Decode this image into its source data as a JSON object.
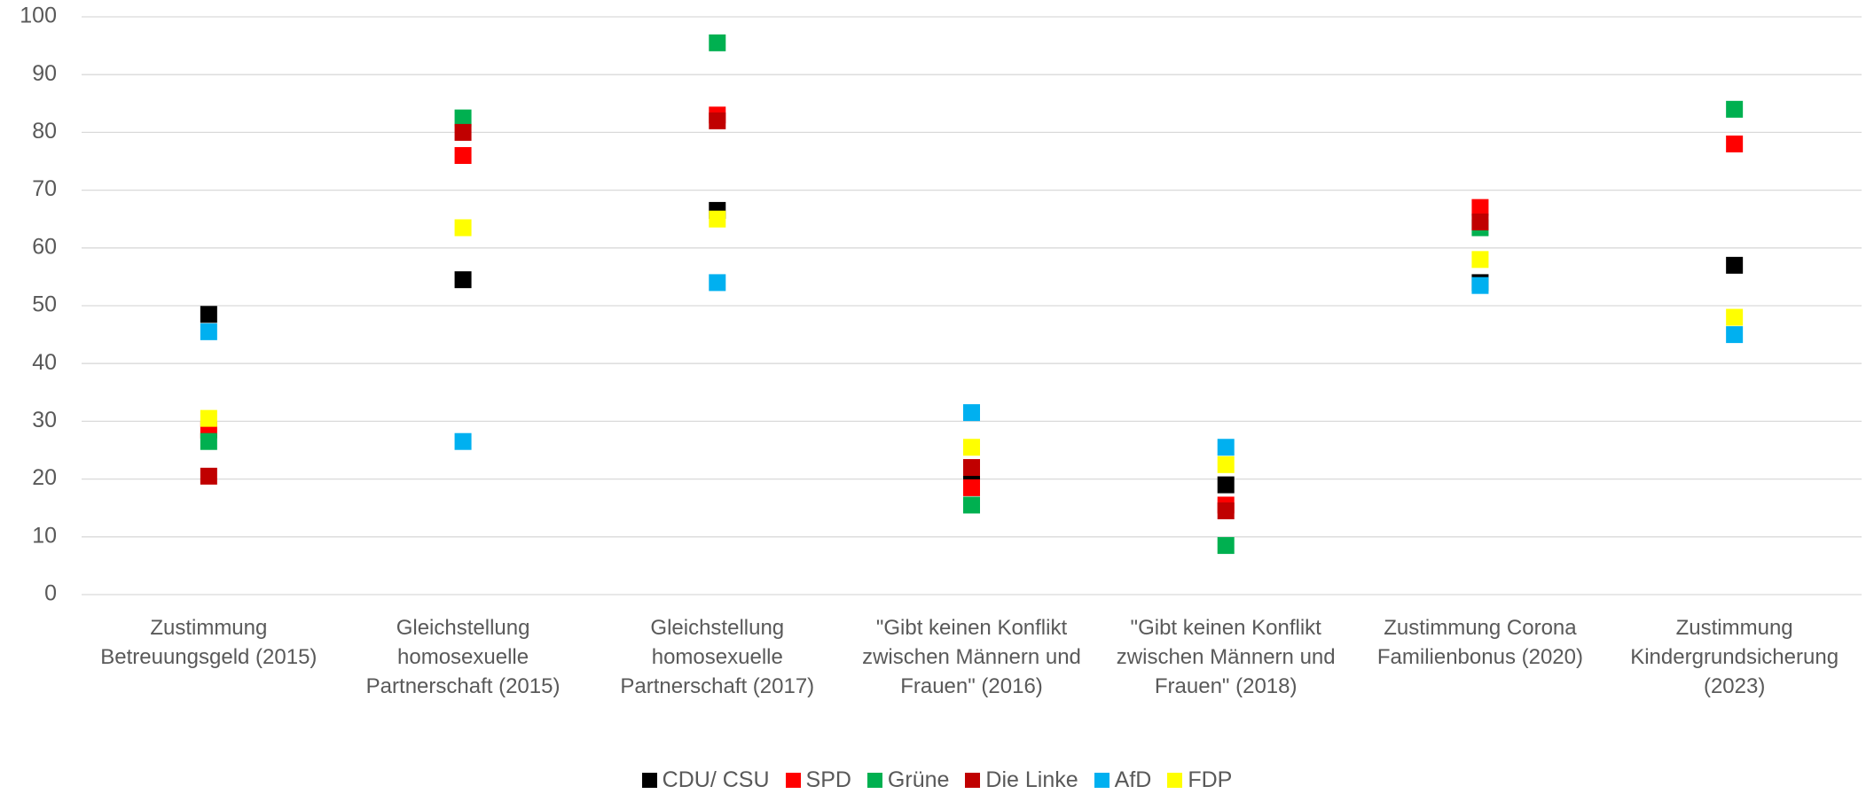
{
  "chart_data": {
    "type": "scatter",
    "categories": [
      "Zustimmung Betreuungsgeld (2015)",
      "Gleichstellung homosexuelle Partnerschaft (2015)",
      "Gleichstellung homosexuelle Partnerschaft (2017)",
      "\"Gibt keinen Konflikt zwischen Männern und Frauen\" (2016)",
      "\"Gibt keinen Konflikt zwischen Männern und Frauen\" (2018)",
      "Zustimmung Corona Familienbonus (2020)",
      "Zustimmung Kindergrundsicherung (2023)"
    ],
    "series": [
      {
        "name": "CDU/ CSU",
        "color": "#000000",
        "values": [
          48.5,
          54.5,
          66.5,
          19.5,
          19,
          54,
          57
        ]
      },
      {
        "name": "SPD",
        "color": "#ff0000",
        "values": [
          28.5,
          76,
          83,
          18.5,
          15.5,
          67,
          78
        ]
      },
      {
        "name": "Grüne",
        "color": "#00b050",
        "values": [
          26.5,
          82.5,
          95.5,
          15.5,
          8.5,
          63.5,
          84
        ]
      },
      {
        "name": "Die Linke",
        "color": "#c00000",
        "values": [
          20.5,
          80,
          82,
          22,
          14.5,
          64.5,
          null
        ]
      },
      {
        "name": "AfD",
        "color": "#00b0f0",
        "values": [
          45.5,
          26.5,
          54,
          31.5,
          25.5,
          53.5,
          45
        ]
      },
      {
        "name": "FDP",
        "color": "#ffff00",
        "values": [
          30.5,
          63.5,
          65,
          25.5,
          22.5,
          58,
          48
        ]
      }
    ],
    "ylim": [
      0,
      100
    ],
    "yticks": [
      0,
      10,
      20,
      30,
      40,
      50,
      60,
      70,
      80,
      90,
      100
    ],
    "grid": true,
    "legend": "bottom"
  }
}
